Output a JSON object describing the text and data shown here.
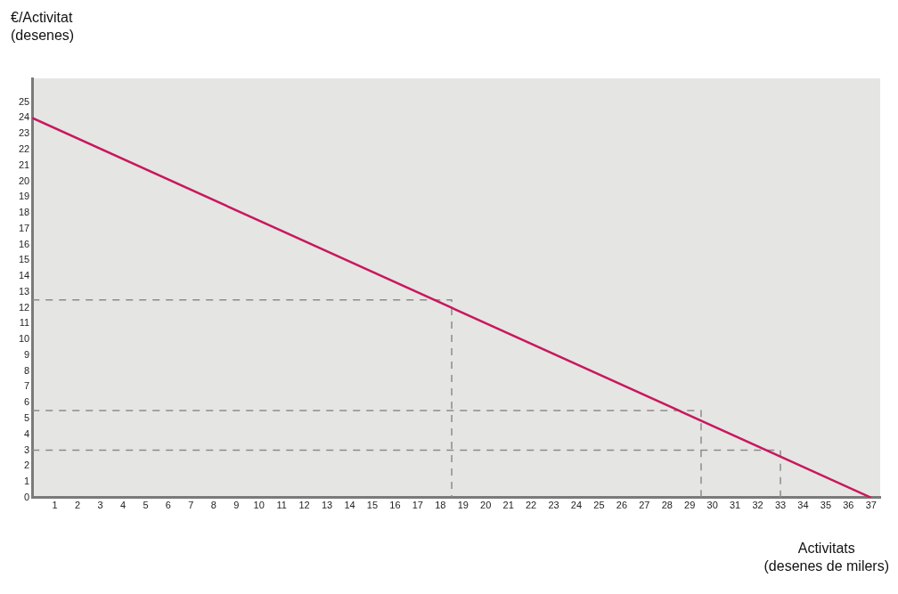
{
  "chart_data": {
    "type": "line",
    "ylabel": "€/Activitat\n(desenes)",
    "xlabel": "Activitats\n(desenes de milers)",
    "xlim": [
      0,
      37.4
    ],
    "xticks": [
      1,
      2,
      3,
      4,
      5,
      6,
      7,
      8,
      9,
      10,
      11,
      12,
      13,
      14,
      15,
      16,
      17,
      18,
      19,
      20,
      21,
      22,
      23,
      24,
      25,
      26,
      27,
      28,
      29,
      30,
      31,
      32,
      33,
      34,
      35,
      36,
      37
    ],
    "ylim": [
      0,
      26.5
    ],
    "yticks": [
      0,
      1,
      2,
      3,
      4,
      5,
      6,
      7,
      8,
      9,
      10,
      11,
      12,
      13,
      14,
      15,
      16,
      17,
      18,
      19,
      20,
      21,
      22,
      23,
      24,
      25
    ],
    "grid": false,
    "legend": false,
    "marker": "none",
    "series": [
      {
        "color": "#c8175d",
        "x": [
          0,
          37
        ],
        "values": [
          24,
          0
        ]
      },
      {
        "color": "#8c8c8c",
        "line_style": "dashed",
        "x": [
          0,
          18.5,
          18.5
        ],
        "values": [
          12.5,
          12.5,
          0
        ]
      },
      {
        "color": "#8c8c8c",
        "line_style": "dashed",
        "x": [
          0,
          29.5,
          29.5
        ],
        "values": [
          5.5,
          5.5,
          0
        ]
      },
      {
        "color": "#8c8c8c",
        "line_style": "dashed",
        "x": [
          0,
          33,
          33
        ],
        "values": [
          3,
          3,
          0
        ]
      }
    ]
  }
}
